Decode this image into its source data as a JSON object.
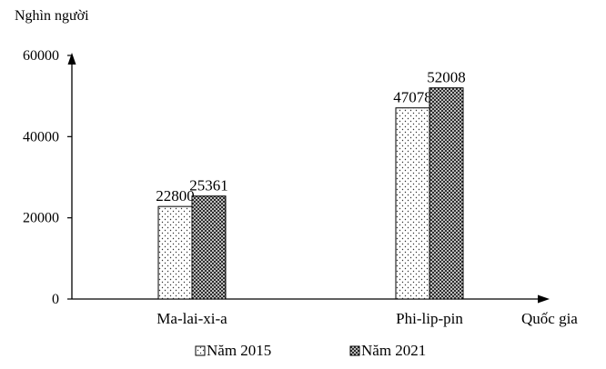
{
  "chart_data": {
    "type": "bar",
    "ylabel": "Nghìn người",
    "xlabel": "Quốc gia",
    "ylim": [
      0,
      60000
    ],
    "yticks": [
      0,
      20000,
      40000,
      60000
    ],
    "grid": false,
    "legend_position": "bottom",
    "categories": [
      "Ma-lai-xi-a",
      "Phi-lip-pin"
    ],
    "series": [
      {
        "name": "Năm 2015",
        "values": [
          22800,
          47078
        ],
        "pattern": "dots"
      },
      {
        "name": "Năm 2021",
        "values": [
          25361,
          52008
        ],
        "pattern": "crosshatch"
      }
    ]
  }
}
